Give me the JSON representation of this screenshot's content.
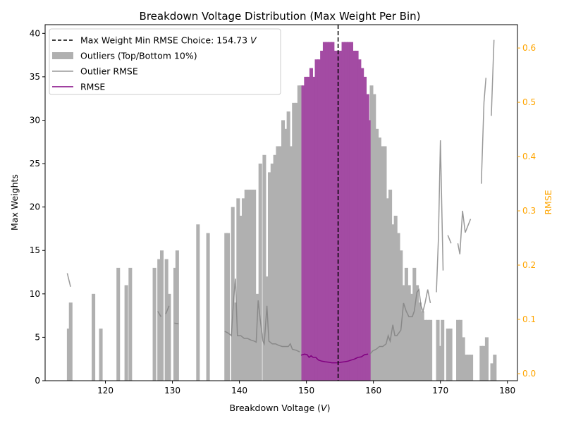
{
  "chart_data": {
    "type": "bar",
    "title": "Breakdown Voltage Distribution (Max Weight Per Bin)",
    "xlabel": "Breakdown Voltage (",
    "xlabel_unit": "V",
    "xlabel_end": ")",
    "ylabel": "Max Weights",
    "y2label": "RMSE",
    "xlim": [
      111,
      181.5
    ],
    "ylim": [
      0,
      41
    ],
    "y2lim": [
      -0.013,
      0.643
    ],
    "bin_width": 0.5,
    "xticks": [
      120,
      130,
      140,
      150,
      160,
      170,
      180
    ],
    "yticks": [
      0,
      5,
      10,
      15,
      20,
      25,
      30,
      35,
      40
    ],
    "y2ticks": [
      0.0,
      0.1,
      0.2,
      0.3,
      0.4,
      0.5,
      0.6
    ],
    "y2tick_labels": [
      "0.0",
      "0.1",
      "0.2",
      "0.3",
      "0.4",
      "0.5",
      "0.6"
    ],
    "colors": {
      "outlier_bar": "#b0b0b0",
      "inlier_bar": "#a34ba3",
      "rmse_line": "#800080",
      "outlier_rmse_line": "#808080",
      "choice_line": "#000000",
      "y2_axis": "#ffa500"
    },
    "choice_x": 154.73,
    "legend": {
      "position": "top-left",
      "items": [
        {
          "label": "Max Weight Min RMSE Choice: 154.73 ",
          "label_unit": "V",
          "style": "dashed-line",
          "color": "#000000"
        },
        {
          "label": "Outliers (Top/Bottom 10%)",
          "style": "patch",
          "color": "#b0b0b0"
        },
        {
          "label": "Outlier RMSE",
          "style": "line",
          "color": "#999999"
        },
        {
          "label": "RMSE",
          "style": "line",
          "color": "#800080"
        }
      ]
    },
    "series": [
      {
        "name": "Outliers (Top/Bottom 10%)",
        "kind": "bar",
        "points": [
          [
            114.5,
            6
          ],
          [
            114.8,
            9
          ],
          [
            118.2,
            10
          ],
          [
            119.3,
            6
          ],
          [
            121.9,
            13
          ],
          [
            123.1,
            11
          ],
          [
            123.7,
            13
          ],
          [
            127.3,
            13
          ],
          [
            128.0,
            14
          ],
          [
            128.4,
            15
          ],
          [
            129.1,
            14
          ],
          [
            129.5,
            10
          ],
          [
            130.4,
            13
          ],
          [
            130.7,
            15
          ],
          [
            133.8,
            18
          ],
          [
            135.3,
            17
          ],
          [
            138.0,
            17
          ],
          [
            138.3,
            17
          ],
          [
            139.0,
            20
          ],
          [
            139.5,
            9
          ],
          [
            139.8,
            21
          ],
          [
            140.2,
            19
          ],
          [
            140.6,
            21
          ],
          [
            141.0,
            22
          ],
          [
            141.4,
            22
          ],
          [
            141.8,
            22
          ],
          [
            142.2,
            22
          ],
          [
            142.6,
            10
          ],
          [
            143.1,
            25
          ],
          [
            143.7,
            26
          ],
          [
            144.1,
            12
          ],
          [
            144.5,
            24
          ],
          [
            144.9,
            25
          ],
          [
            145.3,
            26
          ],
          [
            145.7,
            27
          ],
          [
            146.1,
            27
          ],
          [
            146.5,
            30
          ],
          [
            146.9,
            29
          ],
          [
            147.3,
            31
          ],
          [
            147.7,
            27
          ],
          [
            148.1,
            32
          ],
          [
            148.5,
            32
          ],
          [
            148.9,
            34
          ],
          [
            149.2,
            34
          ],
          [
            159.7,
            34
          ],
          [
            160.1,
            33
          ],
          [
            160.5,
            29
          ],
          [
            160.9,
            28
          ],
          [
            161.3,
            27
          ],
          [
            161.7,
            27
          ],
          [
            162.1,
            21
          ],
          [
            162.5,
            22
          ],
          [
            162.9,
            18
          ],
          [
            163.3,
            19
          ],
          [
            163.7,
            17
          ],
          [
            164.1,
            15
          ],
          [
            164.5,
            11
          ],
          [
            164.9,
            13
          ],
          [
            165.3,
            11
          ],
          [
            165.7,
            10
          ],
          [
            166.1,
            13
          ],
          [
            166.5,
            11
          ],
          [
            166.9,
            9
          ],
          [
            167.3,
            8
          ],
          [
            167.7,
            7
          ],
          [
            168.1,
            7
          ],
          [
            168.5,
            7
          ],
          [
            169.6,
            7
          ],
          [
            170.0,
            4
          ],
          [
            170.3,
            7
          ],
          [
            171.1,
            6
          ],
          [
            171.5,
            6
          ],
          [
            172.6,
            7
          ],
          [
            173.0,
            7
          ],
          [
            173.4,
            5
          ],
          [
            173.8,
            3
          ],
          [
            174.2,
            3
          ],
          [
            174.6,
            3
          ],
          [
            176.1,
            4
          ],
          [
            176.5,
            4
          ],
          [
            176.9,
            5
          ],
          [
            177.7,
            2
          ],
          [
            178.1,
            3
          ]
        ]
      },
      {
        "name": "Inliers",
        "kind": "bar",
        "points": [
          [
            149.5,
            34
          ],
          [
            149.9,
            35
          ],
          [
            150.3,
            35
          ],
          [
            150.7,
            36
          ],
          [
            151.1,
            35
          ],
          [
            151.5,
            37
          ],
          [
            151.9,
            37
          ],
          [
            152.3,
            38
          ],
          [
            152.7,
            39
          ],
          [
            153.1,
            39
          ],
          [
            153.5,
            39
          ],
          [
            153.9,
            39
          ],
          [
            154.3,
            38
          ],
          [
            154.7,
            38
          ],
          [
            155.1,
            38
          ],
          [
            155.5,
            39
          ],
          [
            155.9,
            39
          ],
          [
            156.3,
            39
          ],
          [
            156.7,
            39
          ],
          [
            157.1,
            38
          ],
          [
            157.5,
            38
          ],
          [
            157.9,
            37
          ],
          [
            158.3,
            36
          ],
          [
            158.7,
            35
          ],
          [
            159.1,
            33
          ],
          [
            159.3,
            30
          ]
        ]
      },
      {
        "name": "Outlier RMSE",
        "kind": "line",
        "segments": [
          [
            [
              114.3,
              0.185
            ],
            [
              114.8,
              0.16
            ]
          ],
          [
            [
              127.8,
              0.115
            ],
            [
              128.3,
              0.105
            ]
          ],
          [
            [
              129.0,
              0.11
            ],
            [
              129.5,
              0.125
            ]
          ],
          [
            [
              130.3,
              0.093
            ],
            [
              130.9,
              0.092
            ]
          ],
          [
            [
              137.8,
              0.078
            ],
            [
              138.3,
              0.075
            ],
            [
              138.8,
              0.07
            ],
            [
              139.1,
              0.13
            ],
            [
              139.4,
              0.175
            ],
            [
              139.7,
              0.07
            ],
            [
              140.2,
              0.07
            ],
            [
              140.7,
              0.065
            ],
            [
              141.2,
              0.065
            ],
            [
              141.7,
              0.062
            ],
            [
              142.2,
              0.06
            ],
            [
              142.5,
              0.058
            ],
            [
              142.8,
              0.135
            ],
            [
              143.1,
              0.1
            ],
            [
              143.5,
              0.06
            ],
            [
              143.7,
              0.055
            ],
            [
              144.1,
              0.125
            ],
            [
              144.4,
              0.06
            ],
            [
              144.9,
              0.055
            ],
            [
              145.4,
              0.055
            ],
            [
              145.9,
              0.052
            ],
            [
              146.4,
              0.05
            ],
            [
              146.9,
              0.05
            ],
            [
              147.3,
              0.05
            ],
            [
              147.6,
              0.055
            ],
            [
              147.9,
              0.045
            ],
            [
              148.5,
              0.043
            ],
            [
              149.0,
              0.04
            ]
          ],
          [
            [
              159.4,
              0.035
            ],
            [
              159.9,
              0.042
            ],
            [
              160.4,
              0.045
            ],
            [
              160.9,
              0.05
            ],
            [
              161.4,
              0.05
            ],
            [
              161.9,
              0.055
            ],
            [
              162.2,
              0.07
            ],
            [
              162.5,
              0.06
            ],
            [
              162.9,
              0.09
            ],
            [
              163.2,
              0.07
            ],
            [
              163.5,
              0.07
            ],
            [
              164.1,
              0.08
            ],
            [
              164.5,
              0.13
            ],
            [
              164.9,
              0.115
            ],
            [
              165.3,
              0.105
            ],
            [
              165.8,
              0.105
            ],
            [
              166.1,
              0.115
            ],
            [
              166.5,
              0.15
            ],
            [
              166.8,
              0.155
            ],
            [
              167.1,
              0.125
            ],
            [
              167.4,
              0.115
            ],
            [
              167.7,
              0.13
            ],
            [
              168.1,
              0.155
            ],
            [
              168.5,
              0.13
            ]
          ],
          [
            [
              169.4,
              0.15
            ],
            [
              169.7,
              0.25
            ],
            [
              170.0,
              0.43
            ],
            [
              170.4,
              0.19
            ]
          ],
          [
            [
              171.1,
              0.255
            ],
            [
              171.6,
              0.24
            ]
          ],
          [
            [
              172.6,
              0.24
            ],
            [
              172.9,
              0.22
            ],
            [
              173.3,
              0.3
            ],
            [
              173.7,
              0.26
            ],
            [
              174.5,
              0.285
            ]
          ],
          [
            [
              176.1,
              0.35
            ],
            [
              176.5,
              0.5
            ],
            [
              176.8,
              0.545
            ]
          ],
          [
            [
              177.6,
              0.475
            ],
            [
              178.0,
              0.615
            ]
          ]
        ]
      },
      {
        "name": "RMSE",
        "kind": "line",
        "points": [
          [
            149.2,
            0.034
          ],
          [
            149.7,
            0.036
          ],
          [
            150.1,
            0.035
          ],
          [
            150.4,
            0.03
          ],
          [
            150.7,
            0.033
          ],
          [
            151.0,
            0.03
          ],
          [
            151.4,
            0.03
          ],
          [
            151.8,
            0.025
          ],
          [
            152.3,
            0.023
          ],
          [
            152.8,
            0.022
          ],
          [
            153.3,
            0.021
          ],
          [
            153.8,
            0.02
          ],
          [
            154.3,
            0.02
          ],
          [
            154.7,
            0.02
          ],
          [
            155.2,
            0.021
          ],
          [
            155.7,
            0.022
          ],
          [
            156.2,
            0.023
          ],
          [
            156.7,
            0.025
          ],
          [
            157.2,
            0.027
          ],
          [
            157.7,
            0.03
          ],
          [
            158.2,
            0.031
          ],
          [
            158.7,
            0.035
          ],
          [
            159.2,
            0.036
          ]
        ]
      }
    ]
  }
}
